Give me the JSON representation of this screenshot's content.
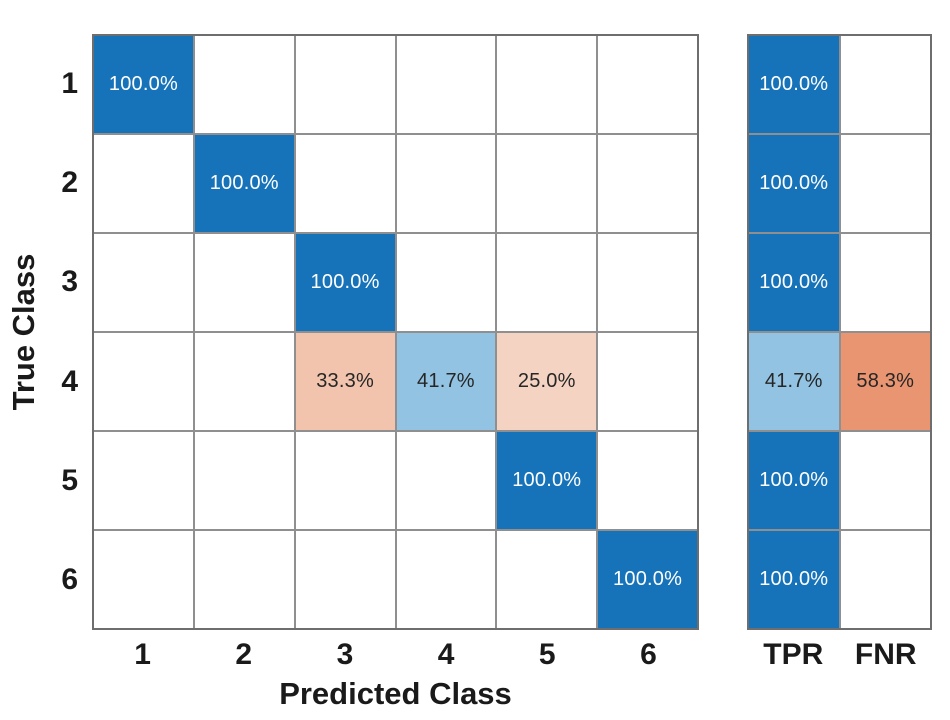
{
  "figure": {
    "x_axis_label": "Predicted Class",
    "y_axis_label": "True Class"
  },
  "axes": {
    "x_ticks": [
      "1",
      "2",
      "3",
      "4",
      "5",
      "6"
    ],
    "y_ticks": [
      "1",
      "2",
      "3",
      "4",
      "5",
      "6"
    ],
    "summary_ticks": [
      "TPR",
      "FNR"
    ]
  },
  "colors": {
    "diagonal_blue": "#1673b9",
    "light_blue": "#92c3e2",
    "salmon": "#f2c4ad",
    "light_salmon": "#f5d3c2",
    "orange": "#ea9572",
    "empty_cell": "#ffffff",
    "grid_line": "#8f8f8f",
    "cell_text_light": "#ffffff",
    "cell_text_dark": "#262626"
  },
  "matrix": {
    "rows": [
      {
        "tick": "1",
        "cells": [
          {
            "t": "100.0%",
            "c": "diagonal_blue",
            "f": "light"
          },
          {},
          {},
          {},
          {},
          {}
        ],
        "tpr": {
          "t": "100.0%",
          "c": "diagonal_blue",
          "f": "light"
        },
        "fnr": {}
      },
      {
        "tick": "2",
        "cells": [
          {},
          {
            "t": "100.0%",
            "c": "diagonal_blue",
            "f": "light"
          },
          {},
          {},
          {},
          {}
        ],
        "tpr": {
          "t": "100.0%",
          "c": "diagonal_blue",
          "f": "light"
        },
        "fnr": {}
      },
      {
        "tick": "3",
        "cells": [
          {},
          {},
          {
            "t": "100.0%",
            "c": "diagonal_blue",
            "f": "light"
          },
          {},
          {},
          {}
        ],
        "tpr": {
          "t": "100.0%",
          "c": "diagonal_blue",
          "f": "light"
        },
        "fnr": {}
      },
      {
        "tick": "4",
        "cells": [
          {},
          {},
          {
            "t": "33.3%",
            "c": "salmon",
            "f": "dark"
          },
          {
            "t": "41.7%",
            "c": "light_blue",
            "f": "dark"
          },
          {
            "t": "25.0%",
            "c": "light_salmon",
            "f": "dark"
          },
          {}
        ],
        "tpr": {
          "t": "41.7%",
          "c": "light_blue",
          "f": "dark"
        },
        "fnr": {
          "t": "58.3%",
          "c": "orange",
          "f": "dark"
        }
      },
      {
        "tick": "5",
        "cells": [
          {},
          {},
          {},
          {},
          {
            "t": "100.0%",
            "c": "diagonal_blue",
            "f": "light"
          },
          {}
        ],
        "tpr": {
          "t": "100.0%",
          "c": "diagonal_blue",
          "f": "light"
        },
        "fnr": {}
      },
      {
        "tick": "6",
        "cells": [
          {},
          {},
          {},
          {},
          {},
          {
            "t": "100.0%",
            "c": "diagonal_blue",
            "f": "light"
          }
        ],
        "tpr": {
          "t": "100.0%",
          "c": "diagonal_blue",
          "f": "light"
        },
        "fnr": {}
      }
    ]
  },
  "chart_data": {
    "type": "heatmap",
    "subtype": "confusion_matrix",
    "title": "",
    "x_label": "Predicted Class",
    "y_label": "True Class",
    "classes": [
      "1",
      "2",
      "3",
      "4",
      "5",
      "6"
    ],
    "values_row_normalized_percent": [
      [
        100.0,
        null,
        null,
        null,
        null,
        null
      ],
      [
        null,
        100.0,
        null,
        null,
        null,
        null
      ],
      [
        null,
        null,
        100.0,
        null,
        null,
        null
      ],
      [
        null,
        null,
        33.3,
        41.7,
        25.0,
        null
      ],
      [
        null,
        null,
        null,
        null,
        100.0,
        null
      ],
      [
        null,
        null,
        null,
        null,
        null,
        100.0
      ]
    ],
    "row_summary_columns": [
      "TPR",
      "FNR"
    ],
    "tpr_percent": [
      100.0,
      100.0,
      100.0,
      41.7,
      100.0,
      100.0
    ],
    "fnr_percent": [
      null,
      null,
      null,
      58.3,
      null,
      null
    ],
    "grid": true,
    "legend_position": "none"
  }
}
